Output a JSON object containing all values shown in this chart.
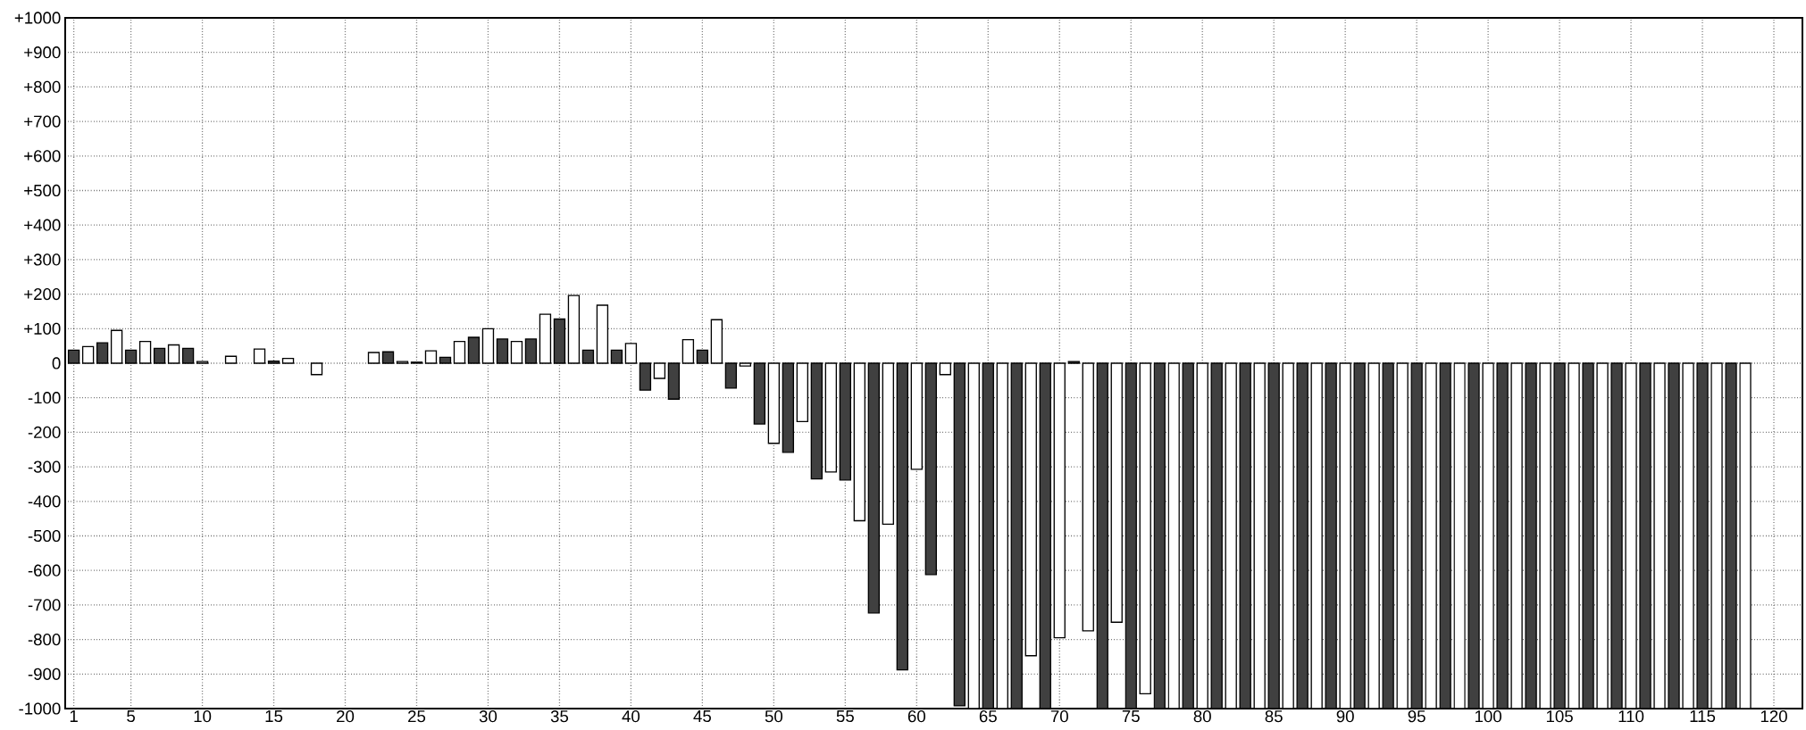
{
  "chart_data": {
    "type": "bar",
    "x": [
      1,
      2,
      3,
      4,
      5,
      6,
      7,
      8,
      9,
      10,
      11,
      12,
      13,
      14,
      15,
      16,
      17,
      18,
      19,
      20,
      21,
      22,
      23,
      24,
      25,
      26,
      27,
      28,
      29,
      30,
      31,
      32,
      33,
      34,
      35,
      36,
      37,
      38,
      39,
      40,
      41,
      42,
      43,
      44,
      45,
      46,
      47,
      48,
      49,
      50,
      51,
      52,
      53,
      54,
      55,
      56,
      57,
      58,
      59,
      60,
      61,
      62,
      63,
      64,
      65,
      66,
      67,
      68,
      69,
      70,
      71,
      72,
      73,
      74,
      75,
      76,
      77,
      78,
      79,
      80,
      81,
      82,
      83,
      84,
      85,
      86,
      87,
      88,
      89,
      90,
      91,
      92,
      93,
      94,
      95,
      96,
      97,
      98,
      99,
      100,
      101,
      102,
      103,
      104,
      105,
      106,
      107,
      108,
      109,
      110,
      111,
      112,
      113,
      114,
      115,
      116,
      117,
      118
    ],
    "values": [
      38,
      48,
      59,
      95,
      38,
      63,
      43,
      53,
      43,
      5,
      null,
      20,
      null,
      41,
      6,
      14,
      null,
      -33,
      null,
      null,
      null,
      31,
      33,
      5,
      3,
      36,
      17,
      63,
      75,
      100,
      70,
      63,
      70,
      142,
      128,
      196,
      38,
      168,
      38,
      57,
      -78,
      -44,
      -104,
      68,
      38,
      126,
      -72,
      -8,
      -176,
      -232,
      -258,
      -169,
      -335,
      -315,
      -338,
      -456,
      -723,
      -466,
      -888,
      -307,
      -612,
      -33,
      -992,
      -1000,
      -1000,
      -1000,
      -1000,
      -847,
      -1000,
      -795,
      5,
      -775,
      -1000,
      -750,
      -1000,
      -957,
      -1000,
      -1000,
      -1000,
      -1000,
      -1000,
      -1000,
      -1000,
      -1000,
      -1000,
      -1000,
      -1000,
      -1000,
      -1000,
      -1000,
      -1000,
      -1000,
      -1000,
      -1000,
      -1000,
      -1000,
      -1000,
      -1000,
      -1000,
      -1000,
      -1000,
      -1000,
      -1000,
      -1000,
      -1000,
      -1000,
      -1000,
      -1000,
      -1000,
      -1000,
      -1000,
      -1000,
      -1000,
      -1000,
      -1000,
      -1000,
      -1000,
      -1000
    ],
    "colors": [
      "#404040",
      "#ffffff",
      "#404040",
      "#ffffff",
      "#404040",
      "#ffffff",
      "#404040",
      "#ffffff",
      "#404040",
      "#ffffff",
      "#404040",
      "#ffffff",
      "#404040",
      "#ffffff",
      "#404040",
      "#ffffff",
      "#404040",
      "#ffffff",
      "#404040",
      "#ffffff",
      "#404040",
      "#ffffff",
      "#404040",
      "#ffffff",
      "#404040",
      "#ffffff",
      "#404040",
      "#ffffff",
      "#404040",
      "#ffffff",
      "#404040",
      "#ffffff",
      "#404040",
      "#ffffff",
      "#404040",
      "#ffffff",
      "#404040",
      "#ffffff",
      "#404040",
      "#ffffff",
      "#404040",
      "#ffffff",
      "#404040",
      "#ffffff",
      "#404040",
      "#ffffff",
      "#404040",
      "#ffffff",
      "#404040",
      "#ffffff",
      "#404040",
      "#ffffff",
      "#404040",
      "#ffffff",
      "#404040",
      "#ffffff",
      "#404040",
      "#ffffff",
      "#404040",
      "#ffffff",
      "#404040",
      "#ffffff",
      "#404040",
      "#ffffff",
      "#404040",
      "#ffffff",
      "#404040",
      "#ffffff",
      "#404040",
      "#ffffff",
      "#404040",
      "#ffffff",
      "#404040",
      "#ffffff",
      "#404040",
      "#ffffff",
      "#404040",
      "#ffffff",
      "#404040",
      "#ffffff",
      "#404040",
      "#ffffff",
      "#404040",
      "#ffffff",
      "#404040",
      "#ffffff",
      "#404040",
      "#ffffff",
      "#404040",
      "#ffffff",
      "#404040",
      "#ffffff",
      "#404040",
      "#ffffff",
      "#404040",
      "#ffffff",
      "#404040",
      "#ffffff",
      "#404040",
      "#ffffff",
      "#404040",
      "#ffffff",
      "#404040",
      "#ffffff",
      "#404040",
      "#ffffff",
      "#404040",
      "#ffffff",
      "#404040",
      "#ffffff",
      "#404040",
      "#ffffff",
      "#404040",
      "#ffffff",
      "#404040",
      "#ffffff",
      "#404040",
      "#ffffff"
    ],
    "xlim": [
      0.4,
      122
    ],
    "ylim": [
      -1000,
      1000
    ],
    "xticks": [
      1,
      5,
      10,
      15,
      20,
      25,
      30,
      35,
      40,
      45,
      50,
      55,
      60,
      65,
      70,
      75,
      80,
      85,
      90,
      95,
      100,
      105,
      110,
      115,
      120
    ],
    "yticks": [
      {
        "value": 1000,
        "label": "+1000"
      },
      {
        "value": 900,
        "label": "+900"
      },
      {
        "value": 800,
        "label": "+800"
      },
      {
        "value": 700,
        "label": "+700"
      },
      {
        "value": 600,
        "label": "+600"
      },
      {
        "value": 500,
        "label": "+500"
      },
      {
        "value": 400,
        "label": "+400"
      },
      {
        "value": 300,
        "label": "+300"
      },
      {
        "value": 200,
        "label": "+200"
      },
      {
        "value": 100,
        "label": "+100"
      },
      0,
      -100,
      -200,
      -300,
      -400,
      -500,
      -600,
      -700,
      -800,
      -900,
      -1000
    ],
    "grid": true
  }
}
